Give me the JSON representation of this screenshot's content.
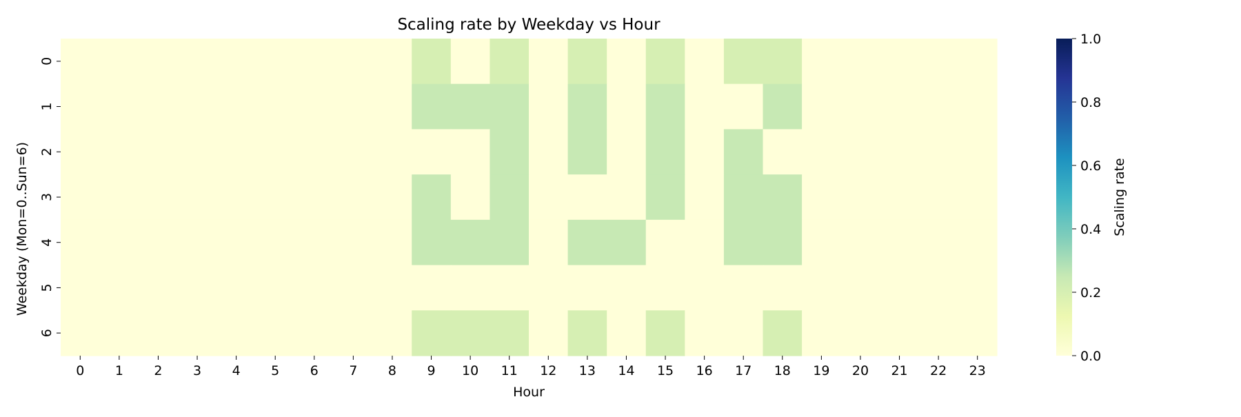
{
  "chart_data": {
    "type": "heatmap",
    "title": "Scaling rate by Weekday vs Hour",
    "xlabel": "Hour",
    "ylabel": "Weekday (Mon=0..Sun=6)",
    "x": [
      "0",
      "1",
      "2",
      "3",
      "4",
      "5",
      "6",
      "7",
      "8",
      "9",
      "10",
      "11",
      "12",
      "13",
      "14",
      "15",
      "16",
      "17",
      "18",
      "19",
      "20",
      "21",
      "22",
      "23"
    ],
    "y": [
      "0",
      "1",
      "2",
      "3",
      "4",
      "5",
      "6"
    ],
    "values": [
      [
        0,
        0,
        0,
        0,
        0,
        0,
        0,
        0,
        0,
        0.2,
        0,
        0.2,
        0,
        0.2,
        0,
        0.2,
        0,
        0.2,
        0.2,
        0,
        0,
        0,
        0,
        0
      ],
      [
        0,
        0,
        0,
        0,
        0,
        0,
        0,
        0,
        0,
        0.25,
        0.25,
        0.25,
        0,
        0.25,
        0,
        0.25,
        0,
        0,
        0.25,
        0,
        0,
        0,
        0,
        0
      ],
      [
        0,
        0,
        0,
        0,
        0,
        0,
        0,
        0,
        0,
        0,
        0,
        0.25,
        0,
        0.25,
        0,
        0.25,
        0,
        0.25,
        0,
        0,
        0,
        0,
        0,
        0
      ],
      [
        0,
        0,
        0,
        0,
        0,
        0,
        0,
        0,
        0,
        0.25,
        0,
        0.25,
        0,
        0,
        0,
        0.25,
        0,
        0.25,
        0.25,
        0,
        0,
        0,
        0,
        0
      ],
      [
        0,
        0,
        0,
        0,
        0,
        0,
        0,
        0,
        0,
        0.25,
        0.25,
        0.25,
        0,
        0.25,
        0.25,
        0,
        0,
        0.25,
        0.25,
        0,
        0,
        0,
        0,
        0
      ],
      [
        0,
        0,
        0,
        0,
        0,
        0,
        0,
        0,
        0,
        0,
        0,
        0,
        0,
        0,
        0,
        0,
        0,
        0,
        0,
        0,
        0,
        0,
        0,
        0
      ],
      [
        0,
        0,
        0,
        0,
        0,
        0,
        0,
        0,
        0,
        0.2,
        0.2,
        0.2,
        0,
        0.2,
        0,
        0.2,
        0,
        0,
        0.2,
        0,
        0,
        0,
        0,
        0
      ]
    ],
    "colorbar": {
      "label": "Scaling rate",
      "range": [
        0,
        1
      ],
      "ticks": [
        "0.0",
        "0.2",
        "0.4",
        "0.6",
        "0.8",
        "1.0"
      ],
      "colormap": "YlGnBu"
    }
  }
}
